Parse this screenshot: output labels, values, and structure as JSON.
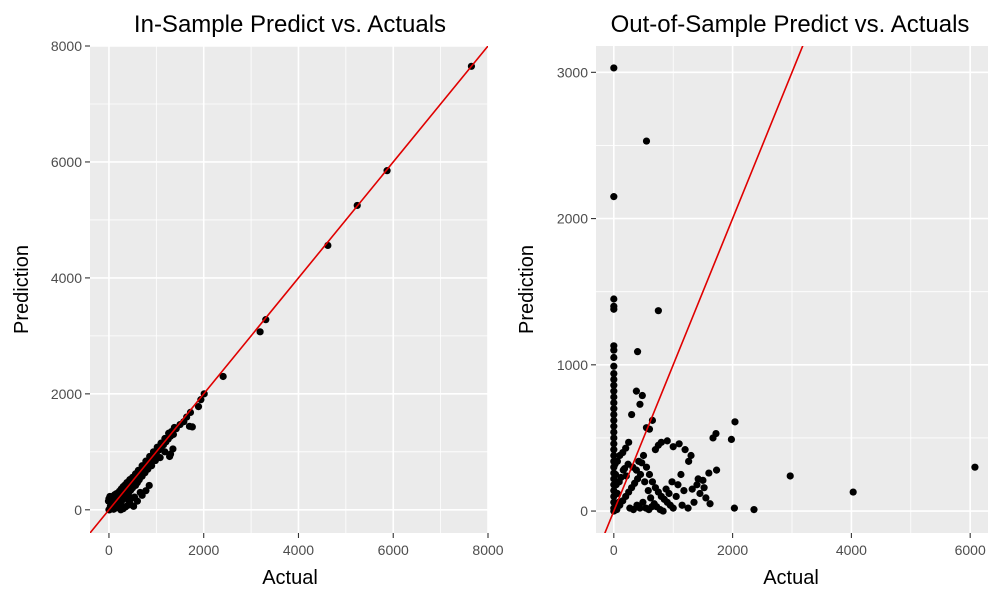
{
  "chart_data": [
    {
      "type": "scatter",
      "title": "In-Sample Predict vs. Actuals",
      "xlabel": "Actual",
      "ylabel": "Prediction",
      "xlim": [
        -400,
        8000
      ],
      "ylim": [
        -400,
        8000
      ],
      "x_ticks": [
        0,
        2000,
        4000,
        6000,
        8000
      ],
      "y_ticks": [
        0,
        2000,
        4000,
        6000,
        8000
      ],
      "x_tick_labels": [
        "0",
        "2000",
        "4000",
        "6000",
        "8000"
      ],
      "y_tick_labels": [
        "0",
        "2000",
        "4000",
        "6000",
        "8000"
      ],
      "grid": true,
      "point_color": "#000000",
      "line_color": "#e00000",
      "reference_line": {
        "slope": 1,
        "intercept": 0
      },
      "points": [
        [
          7650,
          7650
        ],
        [
          5870,
          5850
        ],
        [
          5240,
          5250
        ],
        [
          4620,
          4560
        ],
        [
          3310,
          3280
        ],
        [
          3190,
          3070
        ],
        [
          2410,
          2300
        ],
        [
          2010,
          2000
        ],
        [
          1940,
          1900
        ],
        [
          1890,
          1780
        ],
        [
          1720,
          1680
        ],
        [
          1640,
          1600
        ],
        [
          1760,
          1430
        ],
        [
          1700,
          1440
        ],
        [
          1580,
          1520
        ],
        [
          1500,
          1470
        ],
        [
          1420,
          1400
        ],
        [
          1360,
          1300
        ],
        [
          1300,
          1270
        ],
        [
          1250,
          1220
        ],
        [
          1200,
          1170
        ],
        [
          1150,
          1120
        ],
        [
          1100,
          1080
        ],
        [
          1050,
          1030
        ],
        [
          1000,
          980
        ],
        [
          950,
          940
        ],
        [
          900,
          880
        ],
        [
          850,
          830
        ],
        [
          800,
          790
        ],
        [
          760,
          740
        ],
        [
          720,
          690
        ],
        [
          680,
          650
        ],
        [
          640,
          610
        ],
        [
          600,
          580
        ],
        [
          560,
          540
        ],
        [
          520,
          500
        ],
        [
          480,
          460
        ],
        [
          440,
          420
        ],
        [
          400,
          380
        ],
        [
          360,
          350
        ],
        [
          320,
          300
        ],
        [
          280,
          270
        ],
        [
          240,
          230
        ],
        [
          200,
          190
        ],
        [
          160,
          150
        ],
        [
          120,
          110
        ],
        [
          80,
          70
        ],
        [
          40,
          30
        ],
        [
          10,
          0
        ],
        [
          0,
          0
        ],
        [
          1300,
          960
        ],
        [
          1280,
          920
        ],
        [
          1350,
          1050
        ],
        [
          1180,
          1000
        ],
        [
          1080,
          900
        ],
        [
          980,
          850
        ],
        [
          900,
          760
        ],
        [
          820,
          700
        ],
        [
          760,
          640
        ],
        [
          700,
          580
        ],
        [
          640,
          520
        ],
        [
          600,
          470
        ],
        [
          560,
          420
        ],
        [
          500,
          380
        ],
        [
          460,
          340
        ],
        [
          420,
          300
        ],
        [
          380,
          260
        ],
        [
          340,
          220
        ],
        [
          300,
          180
        ],
        [
          260,
          140
        ],
        [
          220,
          100
        ],
        [
          180,
          60
        ],
        [
          140,
          30
        ],
        [
          100,
          10
        ],
        [
          60,
          200
        ],
        [
          20,
          230
        ],
        [
          0,
          190
        ],
        [
          -10,
          150
        ],
        [
          40,
          120
        ],
        [
          80,
          230
        ],
        [
          120,
          260
        ],
        [
          160,
          280
        ],
        [
          220,
          320
        ],
        [
          260,
          360
        ],
        [
          300,
          400
        ],
        [
          340,
          430
        ],
        [
          380,
          470
        ],
        [
          440,
          520
        ],
        [
          500,
          560
        ],
        [
          560,
          620
        ],
        [
          620,
          680
        ],
        [
          700,
          760
        ],
        [
          780,
          840
        ],
        [
          860,
          920
        ],
        [
          940,
          1000
        ],
        [
          1020,
          1080
        ],
        [
          1100,
          1150
        ],
        [
          1180,
          1230
        ],
        [
          1260,
          1320
        ],
        [
          1320,
          1350
        ],
        [
          1380,
          1420
        ],
        [
          250,
          0
        ],
        [
          300,
          20
        ],
        [
          350,
          50
        ],
        [
          400,
          80
        ],
        [
          450,
          100
        ],
        [
          520,
          60
        ],
        [
          600,
          150
        ],
        [
          700,
          250
        ],
        [
          780,
          330
        ],
        [
          850,
          420
        ],
        [
          660,
          300
        ],
        [
          540,
          220
        ],
        [
          480,
          200
        ],
        [
          420,
          170
        ],
        [
          30,
          60
        ],
        [
          50,
          90
        ],
        [
          70,
          140
        ],
        [
          90,
          40
        ],
        [
          130,
          80
        ],
        [
          170,
          120
        ],
        [
          210,
          160
        ],
        [
          230,
          40
        ],
        [
          110,
          170
        ],
        [
          150,
          200
        ],
        [
          190,
          210
        ],
        [
          270,
          240
        ],
        [
          310,
          260
        ],
        [
          350,
          290
        ],
        [
          390,
          330
        ]
      ]
    },
    {
      "type": "scatter",
      "title": "Out-of-Sample Predict vs. Actuals",
      "xlabel": "Actual",
      "ylabel": "Prediction",
      "xlim": [
        -300,
        6300
      ],
      "ylim": [
        -150,
        3180
      ],
      "x_ticks": [
        0,
        2000,
        4000,
        6000
      ],
      "y_ticks": [
        0,
        1000,
        2000,
        3000
      ],
      "x_tick_labels": [
        "0",
        "2000",
        "4000",
        "6000"
      ],
      "y_tick_labels": [
        "0",
        "1000",
        "2000",
        "3000"
      ],
      "grid": true,
      "point_color": "#000000",
      "line_color": "#e00000",
      "reference_line": {
        "slope": 1,
        "intercept": 0
      },
      "points": [
        [
          0,
          3030
        ],
        [
          0,
          2150
        ],
        [
          550,
          2530
        ],
        [
          0,
          1450
        ],
        [
          0,
          1400
        ],
        [
          0,
          1380
        ],
        [
          750,
          1370
        ],
        [
          0,
          1130
        ],
        [
          0,
          1100
        ],
        [
          0,
          1050
        ],
        [
          0,
          990
        ],
        [
          400,
          1090
        ],
        [
          0,
          940
        ],
        [
          0,
          900
        ],
        [
          0,
          860
        ],
        [
          0,
          820
        ],
        [
          0,
          780
        ],
        [
          0,
          740
        ],
        [
          0,
          700
        ],
        [
          0,
          660
        ],
        [
          0,
          620
        ],
        [
          0,
          580
        ],
        [
          0,
          540
        ],
        [
          0,
          500
        ],
        [
          0,
          460
        ],
        [
          0,
          420
        ],
        [
          0,
          380
        ],
        [
          0,
          340
        ],
        [
          0,
          300
        ],
        [
          0,
          260
        ],
        [
          0,
          220
        ],
        [
          0,
          180
        ],
        [
          0,
          140
        ],
        [
          0,
          100
        ],
        [
          0,
          60
        ],
        [
          0,
          20
        ],
        [
          0,
          0
        ],
        [
          6080,
          300
        ],
        [
          4030,
          130
        ],
        [
          2970,
          240
        ],
        [
          2360,
          10
        ],
        [
          2030,
          20
        ],
        [
          2040,
          610
        ],
        [
          1980,
          490
        ],
        [
          1720,
          530
        ],
        [
          1670,
          500
        ],
        [
          1730,
          280
        ],
        [
          1600,
          260
        ],
        [
          1500,
          210
        ],
        [
          1400,
          180
        ],
        [
          1300,
          380
        ],
        [
          1260,
          340
        ],
        [
          1200,
          420
        ],
        [
          1100,
          460
        ],
        [
          1050,
          100
        ],
        [
          1250,
          20
        ],
        [
          1150,
          40
        ],
        [
          1000,
          440
        ],
        [
          900,
          480
        ],
        [
          800,
          470
        ],
        [
          750,
          450
        ],
        [
          700,
          420
        ],
        [
          600,
          560
        ],
        [
          550,
          570
        ],
        [
          650,
          620
        ],
        [
          480,
          790
        ],
        [
          440,
          730
        ],
        [
          380,
          820
        ],
        [
          300,
          660
        ],
        [
          250,
          470
        ],
        [
          200,
          430
        ],
        [
          150,
          400
        ],
        [
          100,
          380
        ],
        [
          60,
          340
        ],
        [
          500,
          380
        ],
        [
          550,
          300
        ],
        [
          600,
          250
        ],
        [
          650,
          200
        ],
        [
          700,
          160
        ],
        [
          750,
          130
        ],
        [
          800,
          100
        ],
        [
          850,
          80
        ],
        [
          900,
          60
        ],
        [
          950,
          40
        ],
        [
          1000,
          20
        ],
        [
          450,
          250
        ],
        [
          400,
          220
        ],
        [
          350,
          190
        ],
        [
          300,
          160
        ],
        [
          250,
          130
        ],
        [
          200,
          100
        ],
        [
          150,
          70
        ],
        [
          100,
          40
        ],
        [
          50,
          10
        ],
        [
          120,
          230
        ],
        [
          180,
          290
        ],
        [
          240,
          320
        ],
        [
          320,
          300
        ],
        [
          380,
          280
        ],
        [
          420,
          340
        ],
        [
          470,
          330
        ],
        [
          520,
          200
        ],
        [
          580,
          140
        ],
        [
          620,
          90
        ],
        [
          680,
          50
        ],
        [
          720,
          30
        ],
        [
          780,
          10
        ],
        [
          830,
          0
        ],
        [
          880,
          150
        ],
        [
          930,
          120
        ],
        [
          980,
          200
        ],
        [
          1080,
          180
        ],
        [
          1130,
          250
        ],
        [
          1180,
          140
        ],
        [
          1350,
          60
        ],
        [
          1450,
          120
        ],
        [
          1550,
          90
        ],
        [
          1620,
          50
        ],
        [
          1320,
          150
        ],
        [
          1420,
          220
        ],
        [
          1520,
          160
        ],
        [
          270,
          20
        ],
        [
          330,
          10
        ],
        [
          390,
          40
        ],
        [
          440,
          20
        ],
        [
          490,
          60
        ],
        [
          540,
          20
        ],
        [
          590,
          10
        ],
        [
          640,
          30
        ],
        [
          160,
          280
        ],
        [
          210,
          240
        ],
        [
          60,
          120
        ],
        [
          90,
          200
        ],
        [
          30,
          250
        ],
        [
          20,
          320
        ],
        [
          40,
          180
        ],
        [
          80,
          60
        ]
      ]
    }
  ]
}
